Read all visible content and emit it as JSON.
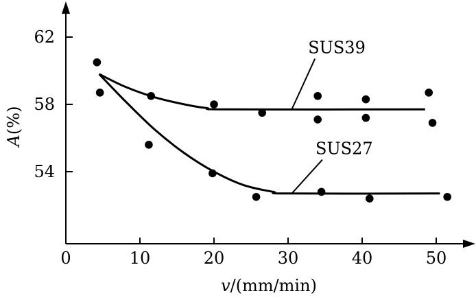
{
  "chart_data": {
    "type": "scatter",
    "title": "",
    "xlabel": "v/(mm/min)",
    "xlabel_var": "v",
    "xlabel_unit": "/(mm/min)",
    "ylabel": "A(%)",
    "ylabel_var": "A",
    "ylabel_unit": "(%)",
    "xlim": [
      0,
      55
    ],
    "ylim": [
      50,
      64
    ],
    "xticks": [
      0,
      10,
      20,
      30,
      40,
      50
    ],
    "yticks": [
      54,
      58,
      62
    ],
    "grid": false,
    "colors": {
      "ink": "#000000",
      "background": "#ffffff"
    },
    "series": [
      {
        "name": "SUS39",
        "points": [
          {
            "x": 4.2,
            "y": 60.5
          },
          {
            "x": 4.6,
            "y": 58.7
          },
          {
            "x": 11.5,
            "y": 58.5
          },
          {
            "x": 20.0,
            "y": 58.0
          },
          {
            "x": 26.5,
            "y": 57.5
          },
          {
            "x": 34.0,
            "y": 58.5
          },
          {
            "x": 34.0,
            "y": 57.1
          },
          {
            "x": 40.5,
            "y": 58.3
          },
          {
            "x": 40.5,
            "y": 57.2
          },
          {
            "x": 49.0,
            "y": 58.7
          },
          {
            "x": 49.5,
            "y": 56.9
          }
        ],
        "fit": [
          {
            "x": 4.5,
            "y": 59.8
          },
          {
            "x": 8,
            "y": 59.05
          },
          {
            "x": 12,
            "y": 58.42
          },
          {
            "x": 16,
            "y": 58.0
          },
          {
            "x": 19,
            "y": 57.78
          },
          {
            "x": 22,
            "y": 57.7
          },
          {
            "x": 48.5,
            "y": 57.7
          }
        ]
      },
      {
        "name": "SUS27",
        "points": [
          {
            "x": 11.2,
            "y": 55.6
          },
          {
            "x": 19.8,
            "y": 53.9
          },
          {
            "x": 25.7,
            "y": 52.5
          },
          {
            "x": 34.5,
            "y": 52.8
          },
          {
            "x": 41.0,
            "y": 52.4
          },
          {
            "x": 51.5,
            "y": 52.5
          }
        ],
        "fit": [
          {
            "x": 4.5,
            "y": 59.8
          },
          {
            "x": 8,
            "y": 58.2
          },
          {
            "x": 12,
            "y": 56.5
          },
          {
            "x": 16,
            "y": 55.1
          },
          {
            "x": 20,
            "y": 54.0
          },
          {
            "x": 24,
            "y": 53.2
          },
          {
            "x": 28,
            "y": 52.8
          },
          {
            "x": 30,
            "y": 52.7
          },
          {
            "x": 50.5,
            "y": 52.7
          }
        ]
      }
    ],
    "annotations": [
      {
        "text": "SUS39",
        "series": "SUS39",
        "anchor": {
          "x": 30.5,
          "y": 57.7
        },
        "label_at": {
          "x": 34,
          "y": 61.2
        }
      },
      {
        "text": "SUS27",
        "series": "SUS27",
        "anchor": {
          "x": 30.5,
          "y": 52.7
        },
        "label_at": {
          "x": 35,
          "y": 55.2
        }
      }
    ]
  }
}
